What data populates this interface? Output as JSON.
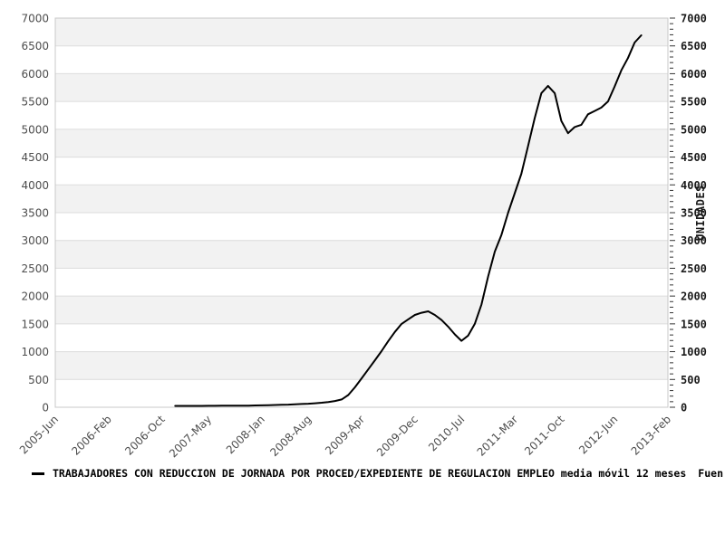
{
  "chart_data": {
    "type": "line",
    "title": "",
    "legend": {
      "series_label": "TRABAJADORES CON REDUCCION DE JORNADA POR PROCED/EXPEDIENTE DE REGULACION EMPLEO media móvil 12 meses",
      "trailing_text": "Fuen"
    },
    "x_ticks": [
      "2005-Jun",
      "2006-Feb",
      "2006-Oct",
      "2007-May",
      "2008-Jan",
      "2008-Aug",
      "2009-Apr",
      "2009-Dec",
      "2010-Jul",
      "2011-Mar",
      "2011-Oct",
      "2012-Jun",
      "2013-Feb"
    ],
    "y_axis": {
      "right_title": "UNIDADES",
      "min": 0,
      "max": 7000,
      "tick_step": 500,
      "minor_tick_step": 100
    },
    "grid": "horizontal-bands",
    "legend_position": "bottom-left",
    "colors": {
      "line": "#000000",
      "band": "#f2f2f2",
      "gridline": "#dcdcdc",
      "plot_border": "#c8c8c8",
      "tick": "#333333"
    },
    "series": [
      {
        "name": "TRABAJADORES CON REDUCCION DE JORNADA POR PROCED/EXPEDIENTE DE REGULACION EMPLEO media móvil 12 meses",
        "points": [
          [
            "2006-12",
            25
          ],
          [
            "2007-01",
            25
          ],
          [
            "2007-02",
            25
          ],
          [
            "2007-03",
            25
          ],
          [
            "2007-04",
            25
          ],
          [
            "2007-05",
            26
          ],
          [
            "2007-06",
            26
          ],
          [
            "2007-07",
            27
          ],
          [
            "2007-08",
            27
          ],
          [
            "2007-09",
            28
          ],
          [
            "2007-10",
            29
          ],
          [
            "2007-11",
            30
          ],
          [
            "2007-12",
            32
          ],
          [
            "2008-01",
            35
          ],
          [
            "2008-02",
            38
          ],
          [
            "2008-03",
            41
          ],
          [
            "2008-04",
            44
          ],
          [
            "2008-05",
            48
          ],
          [
            "2008-06",
            53
          ],
          [
            "2008-07",
            58
          ],
          [
            "2008-08",
            64
          ],
          [
            "2008-09",
            72
          ],
          [
            "2008-10",
            82
          ],
          [
            "2008-11",
            95
          ],
          [
            "2008-12",
            112
          ],
          [
            "2009-01",
            140
          ],
          [
            "2009-02",
            220
          ],
          [
            "2009-03",
            360
          ],
          [
            "2009-04",
            520
          ],
          [
            "2009-05",
            680
          ],
          [
            "2009-06",
            845
          ],
          [
            "2009-07",
            1010
          ],
          [
            "2009-08",
            1190
          ],
          [
            "2009-09",
            1355
          ],
          [
            "2009-10",
            1500
          ],
          [
            "2009-11",
            1580
          ],
          [
            "2009-12",
            1660
          ],
          [
            "2010-01",
            1700
          ],
          [
            "2010-02",
            1725
          ],
          [
            "2010-03",
            1660
          ],
          [
            "2010-04",
            1570
          ],
          [
            "2010-05",
            1450
          ],
          [
            "2010-06",
            1310
          ],
          [
            "2010-07",
            1195
          ],
          [
            "2010-08",
            1290
          ],
          [
            "2010-09",
            1500
          ],
          [
            "2010-10",
            1850
          ],
          [
            "2010-11",
            2350
          ],
          [
            "2010-12",
            2800
          ],
          [
            "2011-01",
            3100
          ],
          [
            "2011-02",
            3500
          ],
          [
            "2011-03",
            3850
          ],
          [
            "2011-04",
            4200
          ],
          [
            "2011-05",
            4700
          ],
          [
            "2011-06",
            5200
          ],
          [
            "2011-07",
            5650
          ],
          [
            "2011-08",
            5780
          ],
          [
            "2011-09",
            5650
          ],
          [
            "2011-10",
            5150
          ],
          [
            "2011-11",
            4930
          ],
          [
            "2011-12",
            5040
          ],
          [
            "2012-01",
            5080
          ],
          [
            "2012-02",
            5270
          ],
          [
            "2012-03",
            5330
          ],
          [
            "2012-04",
            5390
          ],
          [
            "2012-05",
            5500
          ],
          [
            "2012-06",
            5770
          ],
          [
            "2012-07",
            6060
          ],
          [
            "2012-08",
            6280
          ],
          [
            "2012-09",
            6560
          ],
          [
            "2012-10",
            6690
          ]
        ]
      }
    ]
  }
}
